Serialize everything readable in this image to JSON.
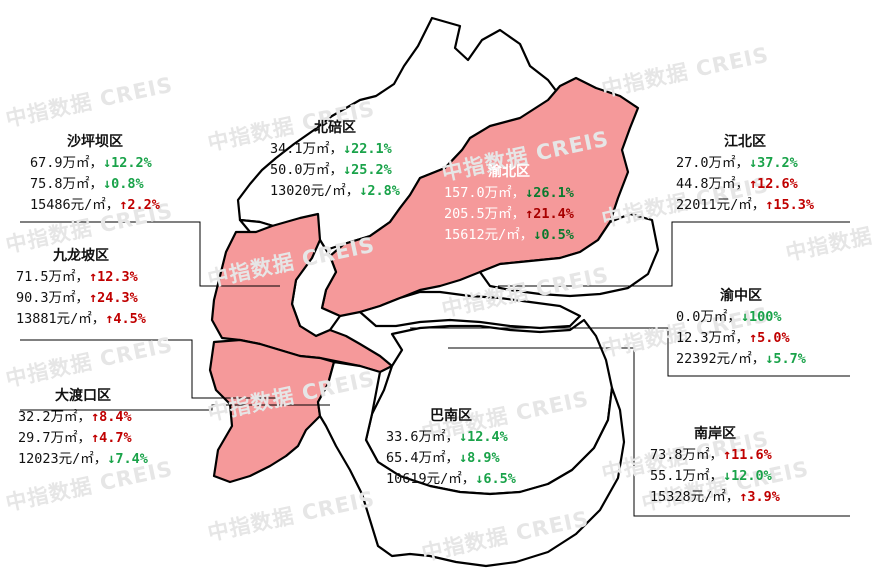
{
  "watermark": {
    "text": "中指数据 CREIS"
  },
  "colors": {
    "highlight": "#f5999a",
    "up": "#c00000",
    "down": "#1aa34a"
  },
  "districts": {
    "shapingba": {
      "name": "沙坪坝区",
      "rows": [
        {
          "value": "67.9万㎡，",
          "arrow": "↓",
          "pct": "12.2%",
          "dir": "down"
        },
        {
          "value": "75.8万㎡，",
          "arrow": "↓",
          "pct": "0.8%",
          "dir": "down"
        },
        {
          "value": "15486元/㎡，",
          "arrow": "↑",
          "pct": "2.2%",
          "dir": "up"
        }
      ]
    },
    "beibei": {
      "name": "北碚区",
      "rows": [
        {
          "value": "34.1万㎡，",
          "arrow": "↓",
          "pct": "22.1%",
          "dir": "down"
        },
        {
          "value": "50.0万㎡，",
          "arrow": "↓",
          "pct": "25.2%",
          "dir": "down"
        },
        {
          "value": "13020元/㎡，",
          "arrow": "↓",
          "pct": "2.8%",
          "dir": "down"
        }
      ]
    },
    "yubei": {
      "name": "渝北区",
      "rows": [
        {
          "value": "157.0万㎡，",
          "arrow": "↓",
          "pct": "26.1%",
          "dir": "down"
        },
        {
          "value": "205.5万㎡，",
          "arrow": "↑",
          "pct": "21.4%",
          "dir": "up"
        },
        {
          "value": "15612元/㎡，",
          "arrow": "↓",
          "pct": "0.5%",
          "dir": "down"
        }
      ]
    },
    "jiangbei": {
      "name": "江北区",
      "rows": [
        {
          "value": "27.0万㎡，",
          "arrow": "↓",
          "pct": "37.2%",
          "dir": "down"
        },
        {
          "value": "44.8万㎡，",
          "arrow": "↑",
          "pct": "12.6%",
          "dir": "up"
        },
        {
          "value": "22011元/㎡，",
          "arrow": "↑",
          "pct": "15.3%",
          "dir": "up"
        }
      ]
    },
    "jiulongpo": {
      "name": "九龙坡区",
      "rows": [
        {
          "value": "71.5万㎡，",
          "arrow": "↑",
          "pct": "12.3%",
          "dir": "up"
        },
        {
          "value": "90.3万㎡，",
          "arrow": "↑",
          "pct": "24.3%",
          "dir": "up"
        },
        {
          "value": "13881元/㎡，",
          "arrow": "↑",
          "pct": "4.5%",
          "dir": "up"
        }
      ]
    },
    "yuzhong": {
      "name": "渝中区",
      "rows": [
        {
          "value": "0.0万㎡，",
          "arrow": "↓",
          "pct": "100%",
          "dir": "down"
        },
        {
          "value": "12.3万㎡，",
          "arrow": "↑",
          "pct": "5.0%",
          "dir": "up"
        },
        {
          "value": "22392元/㎡，",
          "arrow": "↓",
          "pct": "5.7%",
          "dir": "down"
        }
      ]
    },
    "dadukou": {
      "name": "大渡口区",
      "rows": [
        {
          "value": "32.2万㎡，",
          "arrow": "↑",
          "pct": "8.4%",
          "dir": "up"
        },
        {
          "value": "29.7万㎡，",
          "arrow": "↑",
          "pct": "4.7%",
          "dir": "up"
        },
        {
          "value": "12023元/㎡，",
          "arrow": "↓",
          "pct": "7.4%",
          "dir": "down"
        }
      ]
    },
    "banan": {
      "name": "巴南区",
      "rows": [
        {
          "value": "33.6万㎡，",
          "arrow": "↓",
          "pct": "12.4%",
          "dir": "down"
        },
        {
          "value": "65.4万㎡，",
          "arrow": "↓",
          "pct": "8.9%",
          "dir": "down"
        },
        {
          "value": "10619元/㎡，",
          "arrow": "↓",
          "pct": "6.5%",
          "dir": "down"
        }
      ]
    },
    "nanan": {
      "name": "南岸区",
      "rows": [
        {
          "value": "73.8万㎡，",
          "arrow": "↑",
          "pct": "11.6%",
          "dir": "up"
        },
        {
          "value": "55.1万㎡，",
          "arrow": "↓",
          "pct": "12.0%",
          "dir": "down"
        },
        {
          "value": "15328元/㎡，",
          "arrow": "↑",
          "pct": "3.9%",
          "dir": "up"
        }
      ]
    }
  }
}
